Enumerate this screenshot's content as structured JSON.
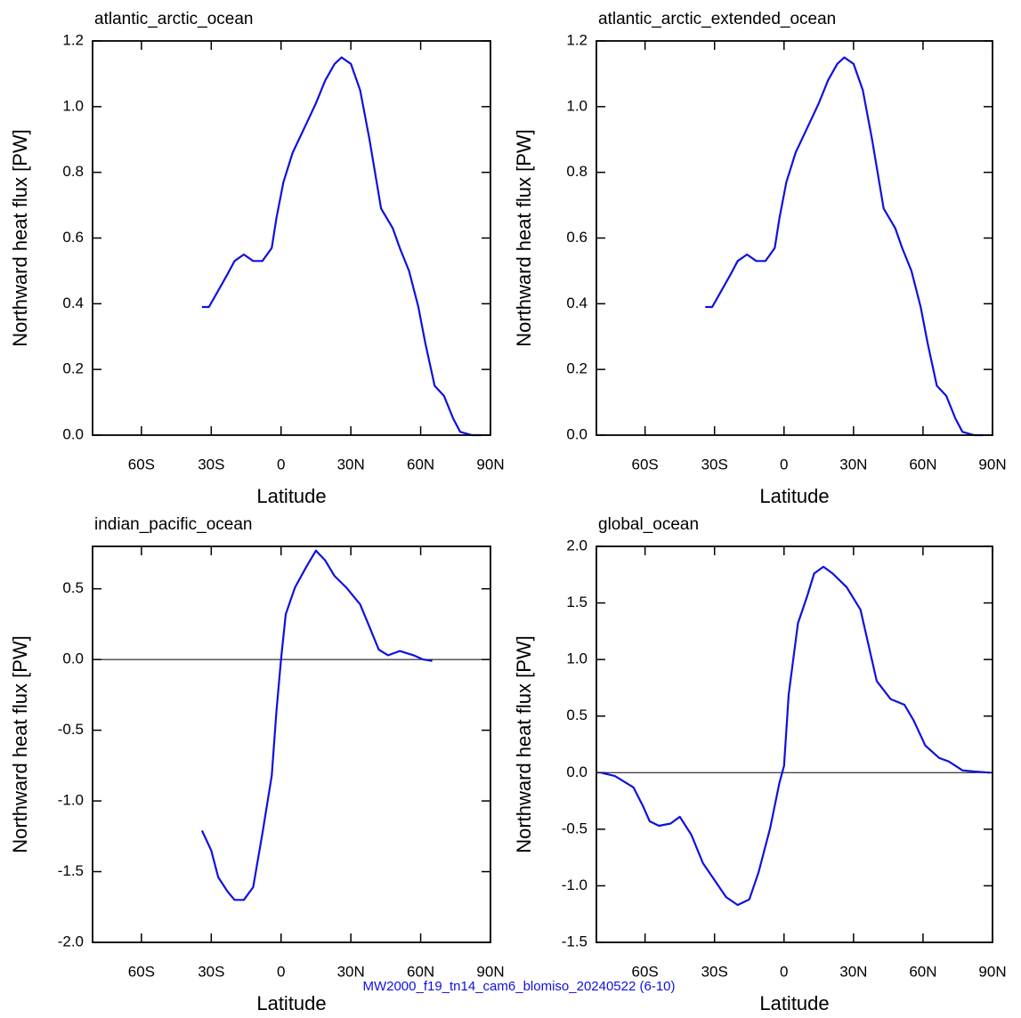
{
  "chart_data": [
    {
      "type": "line",
      "title": "atlantic_arctic_ocean",
      "xlabel": "Latitude",
      "ylabel": "Northward heat flux [PW]",
      "color": "#1010e0",
      "xlim": [
        -81,
        90
      ],
      "ylim": [
        0,
        1.2
      ],
      "xticks": [
        {
          "value": -60,
          "label": "60S"
        },
        {
          "value": -30,
          "label": "30S"
        },
        0,
        {
          "value": 30,
          "label": "30N"
        },
        {
          "value": 60,
          "label": "60N"
        },
        {
          "value": 90,
          "label": "90N"
        }
      ],
      "yticks": [
        {
          "value": 0,
          "label": "0.0"
        },
        0.2,
        0.4,
        0.6,
        0.8,
        {
          "value": 1,
          "label": "1.0"
        },
        1.2
      ],
      "x": [
        -34,
        -31,
        -27,
        -23,
        -20,
        -16,
        -12,
        -8,
        -4,
        -2,
        1,
        5,
        11,
        15,
        19,
        23,
        26,
        30,
        34,
        38,
        43,
        48,
        51,
        55,
        59,
        62,
        66,
        70,
        74,
        77,
        82,
        86
      ],
      "values": [
        0.39,
        0.39,
        0.44,
        0.49,
        0.53,
        0.55,
        0.53,
        0.53,
        0.57,
        0.66,
        0.77,
        0.86,
        0.95,
        1.01,
        1.08,
        1.13,
        1.15,
        1.13,
        1.05,
        0.9,
        0.69,
        0.63,
        0.57,
        0.5,
        0.39,
        0.28,
        0.15,
        0.12,
        0.05,
        0.01,
        0,
        0
      ]
    },
    {
      "type": "line",
      "title": "atlantic_arctic_extended_ocean",
      "xlabel": "Latitude",
      "ylabel": "Northward heat flux [PW]",
      "color": "#1010e0",
      "xlim": [
        -81,
        90
      ],
      "ylim": [
        0,
        1.2
      ],
      "xticks": [
        {
          "value": -60,
          "label": "60S"
        },
        {
          "value": -30,
          "label": "30S"
        },
        0,
        {
          "value": 30,
          "label": "30N"
        },
        {
          "value": 60,
          "label": "60N"
        },
        {
          "value": 90,
          "label": "90N"
        }
      ],
      "yticks": [
        {
          "value": 0,
          "label": "0.0"
        },
        0.2,
        0.4,
        0.6,
        0.8,
        {
          "value": 1,
          "label": "1.0"
        },
        1.2
      ],
      "x": [
        -34,
        -31,
        -27,
        -23,
        -20,
        -16,
        -12,
        -8,
        -4,
        -2,
        1,
        5,
        11,
        15,
        19,
        23,
        26,
        30,
        34,
        38,
        43,
        48,
        51,
        55,
        59,
        62,
        66,
        70,
        74,
        77,
        82,
        86
      ],
      "values": [
        0.39,
        0.39,
        0.44,
        0.49,
        0.53,
        0.55,
        0.53,
        0.53,
        0.57,
        0.66,
        0.77,
        0.86,
        0.95,
        1.01,
        1.08,
        1.13,
        1.15,
        1.13,
        1.05,
        0.9,
        0.69,
        0.63,
        0.57,
        0.5,
        0.39,
        0.28,
        0.15,
        0.12,
        0.05,
        0.01,
        0,
        0
      ]
    },
    {
      "type": "line",
      "title": "indian_pacific_ocean",
      "xlabel": "Latitude",
      "ylabel": "Northward heat flux [PW]",
      "color": "#1010e0",
      "xlim": [
        -81,
        90
      ],
      "ylim": [
        -2,
        0.8
      ],
      "refline": 0,
      "xticks": [
        {
          "value": -60,
          "label": "60S"
        },
        {
          "value": -30,
          "label": "30S"
        },
        0,
        {
          "value": 30,
          "label": "30N"
        },
        {
          "value": 60,
          "label": "60N"
        },
        {
          "value": 90,
          "label": "90N"
        }
      ],
      "yticks": [
        {
          "value": -2,
          "label": "-2.0"
        },
        -1.5,
        {
          "value": -1,
          "label": "-1.0"
        },
        -0.5,
        {
          "value": 0,
          "label": "0.0"
        },
        0.5
      ],
      "x": [
        -34,
        -30,
        -27,
        -23,
        -20,
        -16,
        -12,
        -8,
        -4,
        -2,
        0,
        2,
        6,
        11,
        15,
        19,
        23,
        28,
        34,
        38,
        42,
        46,
        51,
        57,
        61,
        65
      ],
      "values": [
        -1.21,
        -1.35,
        -1.54,
        -1.64,
        -1.7,
        -1.7,
        -1.61,
        -1.23,
        -0.82,
        -0.37,
        0,
        0.32,
        0.51,
        0.66,
        0.77,
        0.7,
        0.59,
        0.51,
        0.39,
        0.23,
        0.07,
        0.03,
        0.06,
        0.03,
        0,
        -0.01
      ]
    },
    {
      "type": "line",
      "title": "global_ocean",
      "xlabel": "Latitude",
      "ylabel": "Northward heat flux [PW]",
      "color": "#1010e0",
      "xlim": [
        -81,
        90
      ],
      "ylim": [
        -1.5,
        2
      ],
      "refline": 0,
      "xticks": [
        {
          "value": -60,
          "label": "60S"
        },
        {
          "value": -30,
          "label": "30S"
        },
        0,
        {
          "value": 30,
          "label": "30N"
        },
        {
          "value": 60,
          "label": "60N"
        },
        {
          "value": 90,
          "label": "90N"
        }
      ],
      "yticks": [
        -1.5,
        {
          "value": -1,
          "label": "-1.0"
        },
        -0.5,
        {
          "value": 0,
          "label": "0.0"
        },
        0.5,
        {
          "value": 1,
          "label": "1.0"
        },
        1.5,
        {
          "value": 2,
          "label": "2.0"
        }
      ],
      "x": [
        -79,
        -73,
        -65,
        -61,
        -58,
        -54,
        -49,
        -45,
        -40,
        -35,
        -29,
        -25,
        -20,
        -15,
        -11,
        -6,
        -2,
        0,
        2,
        6,
        10,
        13,
        17,
        21,
        27,
        33,
        36,
        40,
        46,
        52,
        56,
        61,
        67,
        71,
        77,
        82,
        89
      ],
      "values": [
        0,
        -0.03,
        -0.13,
        -0.29,
        -0.43,
        -0.47,
        -0.45,
        -0.39,
        -0.55,
        -0.8,
        -0.98,
        -1.1,
        -1.17,
        -1.12,
        -0.88,
        -0.49,
        -0.09,
        0.06,
        0.69,
        1.32,
        1.56,
        1.76,
        1.82,
        1.76,
        1.64,
        1.44,
        1.17,
        0.81,
        0.65,
        0.6,
        0.46,
        0.24,
        0.13,
        0.1,
        0.02,
        0.01,
        0
      ]
    }
  ],
  "footer": "MW2000_f19_tn14_cam6_blomiso_20240522 (6-10)"
}
